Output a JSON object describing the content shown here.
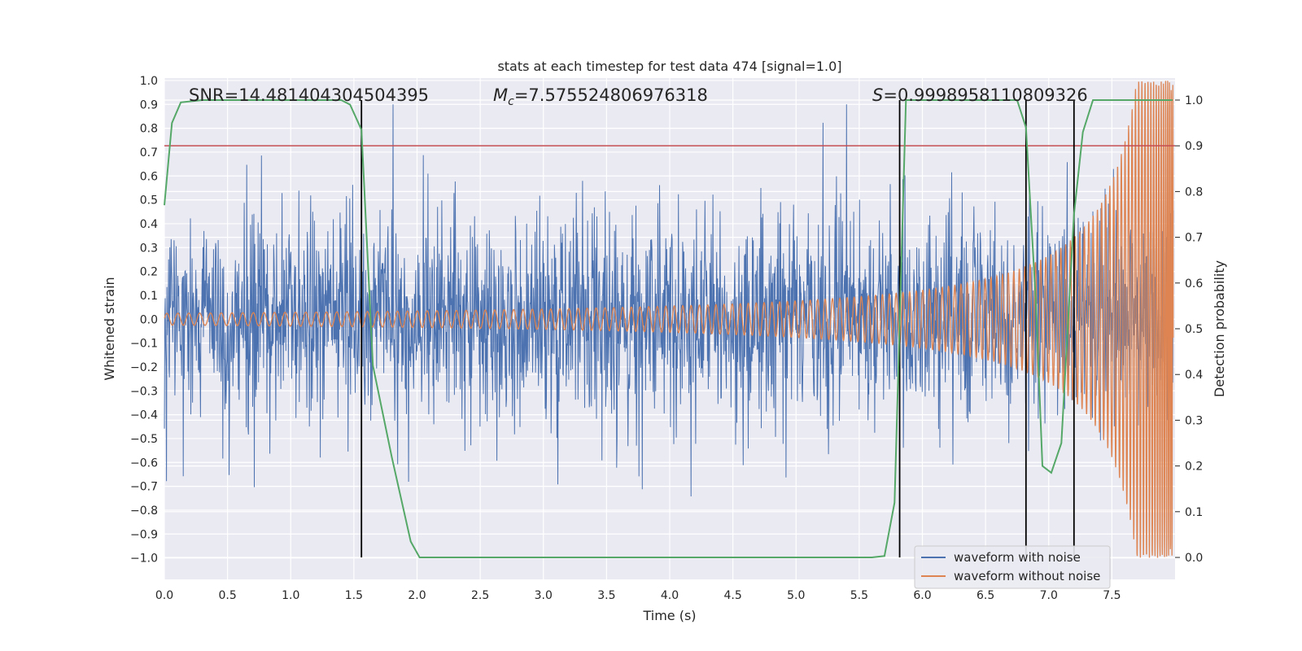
{
  "chart_data": {
    "type": "line",
    "title": "stats at each timestep for test data 474 [signal=1.0]",
    "xlabel": "Time (s)",
    "ylabel": "Whitened strain",
    "y2label": "Detection probability",
    "xlim": [
      0.0,
      8.0
    ],
    "ylim": [
      -1.09,
      1.01
    ],
    "y2lim": [
      -0.048,
      1.048
    ],
    "xticks": [
      "0.0",
      "0.5",
      "1.0",
      "1.5",
      "2.0",
      "2.5",
      "3.0",
      "3.5",
      "4.0",
      "4.5",
      "5.0",
      "5.5",
      "6.0",
      "6.5",
      "7.0",
      "7.5"
    ],
    "yticks": [
      "1.0",
      "0.9",
      "0.8",
      "0.7",
      "0.6",
      "0.5",
      "0.4",
      "0.3",
      "0.2",
      "0.1",
      "0.0",
      "−0.1",
      "−0.2",
      "−0.3",
      "−0.4",
      "−0.5",
      "−0.6",
      "−0.7",
      "−0.8",
      "−0.9",
      "−1.0"
    ],
    "y2ticks": [
      "1.0",
      "0.9",
      "0.8",
      "0.7",
      "0.6",
      "0.5",
      "0.4",
      "0.3",
      "0.2",
      "0.1",
      "0.0"
    ],
    "annotations": {
      "snr": "SNR=14.481404304504395",
      "mc_symbol": "M",
      "mc_sub": "c",
      "mc_value": "=7.575524806976318",
      "s_symbol": "S",
      "s_value": "=0.9998958110809326"
    },
    "threshold": 0.9,
    "vlines": [
      1.56,
      5.82,
      6.82,
      7.2
    ],
    "detection_probability": {
      "x": [
        0.0,
        0.06,
        0.13,
        0.3,
        0.6,
        1.0,
        1.4,
        1.47,
        1.56,
        1.65,
        1.8,
        1.95,
        2.02,
        2.2,
        3.0,
        4.0,
        5.0,
        5.6,
        5.7,
        5.78,
        5.87,
        6.0,
        6.5,
        6.75,
        6.82,
        6.9,
        6.95,
        7.02,
        7.1,
        7.2,
        7.27,
        7.35,
        7.98
      ],
      "y": [
        0.77,
        0.95,
        0.995,
        1.0,
        1.0,
        1.0,
        1.0,
        0.99,
        0.935,
        0.42,
        0.22,
        0.035,
        0.0,
        0.0,
        0.0,
        0.0,
        0.0,
        0.0,
        0.003,
        0.12,
        1.0,
        1.0,
        1.0,
        1.0,
        0.94,
        0.55,
        0.2,
        0.185,
        0.25,
        0.75,
        0.93,
        1.0,
        1.0
      ]
    },
    "series": [
      {
        "name": "waveform with noise",
        "color": "#4c72b0"
      },
      {
        "name": "waveform without noise",
        "color": "#dd8452"
      },
      {
        "name": "detection probability",
        "color": "#55a868"
      },
      {
        "name": "threshold",
        "color": "#c44e52"
      }
    ]
  }
}
